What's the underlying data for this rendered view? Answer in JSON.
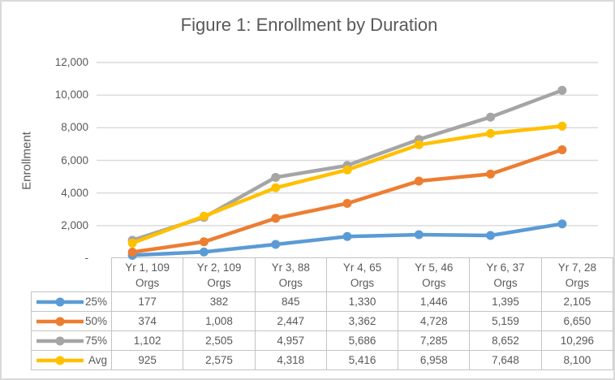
{
  "figure": {
    "title": "Figure 1: Enrollment by Duration",
    "colors": {
      "text": "#595959",
      "gridline": "#D9D9D9",
      "table_border": "#C4C4C4",
      "outer_border": "#DADADA",
      "background": "#FFFFFF"
    }
  },
  "chart_data": {
    "type": "line",
    "title": "Figure 1: Enrollment by Duration",
    "xlabel": "",
    "ylabel": "Enrollment",
    "ylim": [
      0,
      12000
    ],
    "grid": true,
    "legend_position": "table-left-column",
    "yticks": [
      {
        "label": "12,000",
        "value": 12000
      },
      {
        "label": "10,000",
        "value": 10000
      },
      {
        "label": "8,000",
        "value": 8000
      },
      {
        "label": "6,000",
        "value": 6000
      },
      {
        "label": "4,000",
        "value": 4000
      },
      {
        "label": "2,000",
        "value": 2000
      },
      {
        "label": "-",
        "value": 0
      }
    ],
    "categories": [
      {
        "line1": "Yr 1, 109",
        "line2": "Orgs"
      },
      {
        "line1": "Yr 2, 109",
        "line2": "Orgs"
      },
      {
        "line1": "Yr 3, 88",
        "line2": "Orgs"
      },
      {
        "line1": "Yr 4, 65",
        "line2": "Orgs"
      },
      {
        "line1": "Yr 5, 46",
        "line2": "Orgs"
      },
      {
        "line1": "Yr 6, 37",
        "line2": "Orgs"
      },
      {
        "line1": "Yr 7, 28",
        "line2": "Orgs"
      }
    ],
    "series": [
      {
        "name": "25%",
        "color": "#5B9BD5",
        "values": [
          177,
          382,
          845,
          1330,
          1446,
          1395,
          2105
        ],
        "labels": [
          "177",
          "382",
          "845",
          "1,330",
          "1,446",
          "1,395",
          "2,105"
        ]
      },
      {
        "name": "50%",
        "color": "#ED7D31",
        "values": [
          374,
          1008,
          2447,
          3362,
          4728,
          5159,
          6650
        ],
        "labels": [
          "374",
          "1,008",
          "2,447",
          "3,362",
          "4,728",
          "5,159",
          "6,650"
        ]
      },
      {
        "name": "75%",
        "color": "#A5A5A5",
        "values": [
          1102,
          2505,
          4957,
          5686,
          7285,
          8652,
          10296
        ],
        "labels": [
          "1,102",
          "2,505",
          "4,957",
          "5,686",
          "7,285",
          "8,652",
          "10,296"
        ]
      },
      {
        "name": "Avg",
        "color": "#FFC000",
        "values": [
          925,
          2575,
          4318,
          5416,
          6958,
          7648,
          8100
        ],
        "labels": [
          "925",
          "2,575",
          "4,318",
          "5,416",
          "6,958",
          "7,648",
          "8,100"
        ]
      }
    ]
  }
}
